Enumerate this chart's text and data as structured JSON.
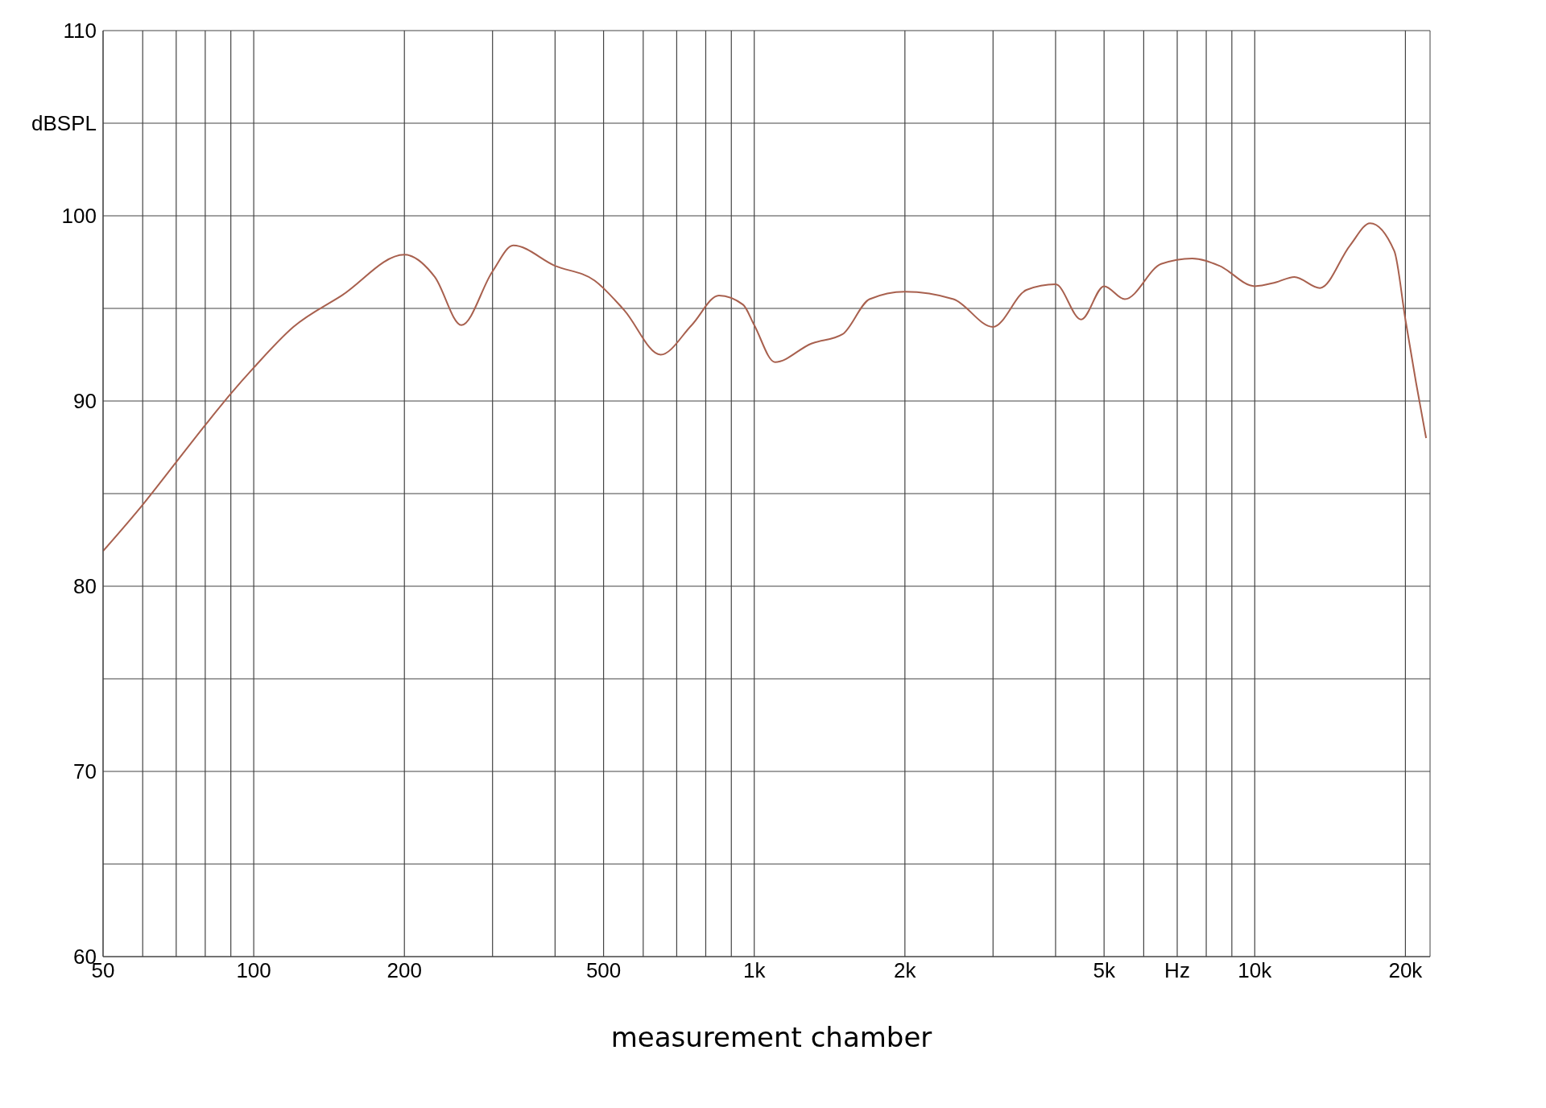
{
  "chart_data": {
    "type": "line",
    "log": "x",
    "grid": true,
    "marker": "none",
    "line_style": "solid",
    "xlim": [
      50,
      22400
    ],
    "ylim": [
      60,
      110
    ],
    "xticks": [
      50,
      {
        "value": 60,
        "label": null
      },
      {
        "value": 70,
        "label": null
      },
      {
        "value": 80,
        "label": null
      },
      {
        "value": 90,
        "label": null
      },
      100,
      200,
      {
        "value": 300,
        "label": null
      },
      {
        "value": 400,
        "label": null
      },
      500,
      {
        "value": 600,
        "label": null
      },
      {
        "value": 700,
        "label": null
      },
      {
        "value": 800,
        "label": null
      },
      {
        "value": 900,
        "label": null
      },
      {
        "value": 1000,
        "label": "1k"
      },
      {
        "value": 2000,
        "label": "2k"
      },
      {
        "value": 3000,
        "label": null
      },
      {
        "value": 4000,
        "label": null
      },
      {
        "value": 5000,
        "label": "5k"
      },
      {
        "value": 6000,
        "label": null
      },
      {
        "value": 7000,
        "label": "Hz"
      },
      {
        "value": 8000,
        "label": null
      },
      {
        "value": 9000,
        "label": null
      },
      {
        "value": 10000,
        "label": "10k"
      },
      {
        "value": 20000,
        "label": "20k"
      }
    ],
    "yticks": [
      60,
      {
        "value": 65,
        "label": null
      },
      70,
      {
        "value": 75,
        "label": null
      },
      80,
      {
        "value": 85,
        "label": null
      },
      90,
      {
        "value": 95,
        "label": null
      },
      100,
      {
        "value": 105,
        "label": "dBSPL"
      },
      110
    ],
    "x": [
      50,
      60,
      70,
      80,
      90,
      100,
      120,
      150,
      200,
      230,
      260,
      300,
      330,
      400,
      480,
      550,
      650,
      750,
      850,
      950,
      1000,
      1100,
      1300,
      1500,
      1700,
      2000,
      2500,
      3000,
      3500,
      4000,
      4500,
      5000,
      5500,
      6500,
      7500,
      8500,
      10000,
      11000,
      12000,
      13500,
      15500,
      17000,
      19000,
      20000,
      21000,
      22000
    ],
    "series": [
      {
        "color": "#a8604e",
        "values": [
          81.9,
          84.4,
          86.7,
          88.7,
          90.4,
          91.8,
          94.0,
          95.7,
          97.9,
          96.7,
          94.1,
          97.0,
          98.4,
          97.3,
          96.5,
          94.9,
          92.5,
          94.1,
          95.7,
          95.2,
          94.1,
          92.1,
          93.1,
          93.6,
          95.5,
          95.9,
          95.5,
          94.0,
          96.0,
          96.3,
          94.4,
          96.2,
          95.5,
          97.4,
          97.7,
          97.3,
          96.2,
          96.4,
          96.7,
          96.1,
          98.4,
          99.6,
          98.1,
          94.4,
          91.0,
          88.0
        ]
      }
    ],
    "annotations": [
      "measurement chamber"
    ]
  }
}
